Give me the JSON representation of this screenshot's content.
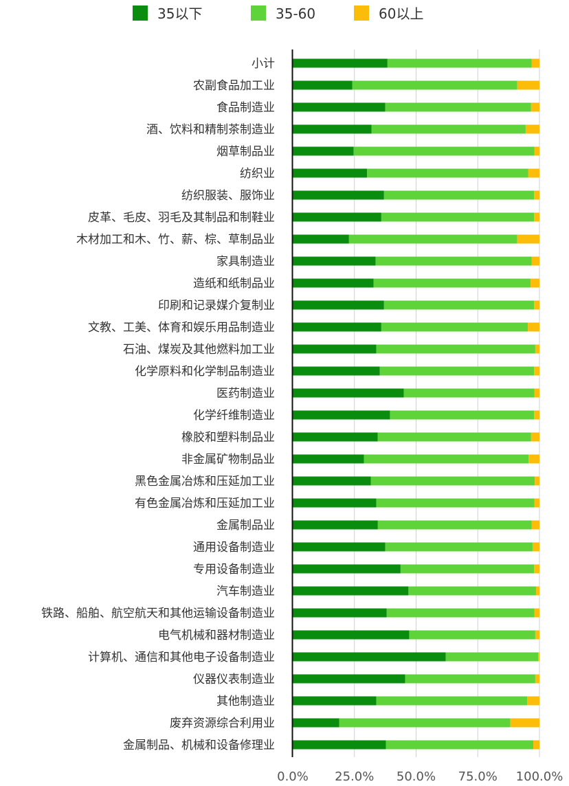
{
  "chart_data": {
    "type": "bar",
    "orientation": "horizontal",
    "stacked": true,
    "title": "",
    "xlabel": "",
    "ylabel": "",
    "xlim": [
      0,
      100
    ],
    "xticks": [
      "0.0%",
      "25.0%",
      "50.0%",
      "75.0%",
      "100.0%"
    ],
    "grid": true,
    "legend_position": "top",
    "categories": [
      "小计",
      "农副食品加工业",
      "食品制造业",
      "酒、饮料和精制茶制造业",
      "烟草制品业",
      "纺织业",
      "纺织服装、服饰业",
      "皮革、毛皮、羽毛及其制品和制鞋业",
      "木材加工和木、竹、薪、棕、草制品业",
      "家具制造业",
      "造纸和纸制品业",
      "印刷和记录媒介复制业",
      "文教、工美、体育和娱乐用品制造业",
      "石油、煤炭及其他燃料加工业",
      "化学原料和化学制品制造业",
      "医药制造业",
      "化学纤维制造业",
      "橡胶和塑料制品业",
      "非金属矿物制品业",
      "黑色金属冶炼和压延加工业",
      "有色金属冶炼和压延加工业",
      "金属制品业",
      "通用设备制造业",
      "专用设备制造业",
      "汽车制造业",
      "铁路、船舶、航空航天和其他运输设备制造业",
      "电气机械和器材制造业",
      "计算机、通信和其他电子设备制造业",
      "仪器仪表制造业",
      "其他制造业",
      "废弃资源综合利用业",
      "金属制品、机械和设备修理业"
    ],
    "series": [
      {
        "name": "35以下",
        "color": "#0a8c0e",
        "values": [
          38.4,
          24.1,
          37.5,
          31.9,
          24.7,
          30.1,
          37.0,
          35.9,
          22.8,
          33.6,
          32.8,
          37.0,
          35.9,
          33.9,
          35.3,
          45.0,
          39.4,
          34.4,
          28.9,
          31.7,
          33.9,
          34.5,
          37.5,
          43.7,
          46.9,
          38.1,
          47.2,
          62.0,
          45.6,
          33.9,
          18.8,
          37.8
        ]
      },
      {
        "name": "35-60",
        "color": "#5fd43a",
        "values": [
          58.5,
          66.9,
          59.1,
          62.5,
          73.3,
          65.3,
          60.8,
          61.9,
          68.2,
          63.3,
          63.6,
          60.8,
          59.4,
          64.4,
          62.5,
          53.0,
          58.4,
          62.2,
          66.7,
          66.4,
          64.1,
          62.4,
          59.7,
          54.1,
          51.7,
          59.9,
          51.1,
          37.5,
          52.7,
          61.1,
          69.4,
          59.7
        ]
      },
      {
        "name": "60以上",
        "color": "#fbbd0a",
        "values": [
          3.1,
          9.0,
          3.4,
          5.6,
          2.0,
          4.6,
          2.2,
          2.2,
          9.0,
          3.1,
          3.6,
          2.2,
          4.7,
          1.7,
          2.2,
          2.0,
          2.2,
          3.4,
          4.4,
          1.9,
          2.0,
          3.1,
          2.8,
          2.2,
          1.4,
          2.0,
          1.7,
          0.5,
          1.7,
          5.0,
          11.8,
          2.5
        ]
      }
    ]
  }
}
